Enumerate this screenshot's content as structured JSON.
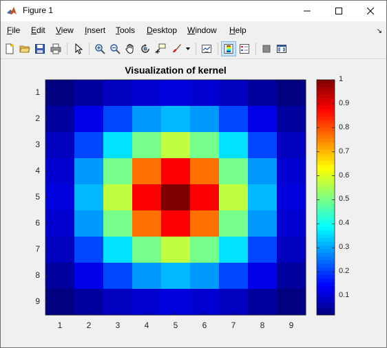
{
  "window": {
    "title": "Figure 1",
    "icon": "matlab-icon",
    "controls": [
      "minimize-icon",
      "maximize-icon",
      "close-icon"
    ]
  },
  "menu": [
    "File",
    "Edit",
    "View",
    "Insert",
    "Tools",
    "Desktop",
    "Window",
    "Help"
  ],
  "toolbar": {
    "buttons": [
      "new-figure-icon",
      "open-file-icon",
      "save-icon",
      "print-icon",
      "edit-plot-icon",
      "zoom-in-icon",
      "zoom-out-icon",
      "pan-icon",
      "rotate-3d-icon",
      "data-cursor-icon",
      "brush-icon",
      "link-plot-icon",
      "insert-colorbar-icon",
      "insert-legend-icon",
      "hide-plot-tools-icon",
      "show-plot-tools-icon"
    ],
    "active": [
      "insert-colorbar-icon"
    ]
  },
  "chart_data": {
    "type": "heatmap",
    "title": "Visualization of kernel",
    "x": [
      1,
      2,
      3,
      4,
      5,
      6,
      7,
      8,
      9
    ],
    "y": [
      1,
      2,
      3,
      4,
      5,
      6,
      7,
      8,
      9
    ],
    "xticklabels": [
      "1",
      "2",
      "3",
      "4",
      "5",
      "6",
      "7",
      "8",
      "9"
    ],
    "yticklabels": [
      "1",
      "2",
      "3",
      "4",
      "5",
      "6",
      "7",
      "8",
      "9"
    ],
    "values": [
      [
        0.02,
        0.05,
        0.08,
        0.1,
        0.11,
        0.1,
        0.08,
        0.05,
        0.02
      ],
      [
        0.05,
        0.12,
        0.21,
        0.29,
        0.32,
        0.29,
        0.21,
        0.12,
        0.05
      ],
      [
        0.08,
        0.21,
        0.36,
        0.5,
        0.57,
        0.5,
        0.36,
        0.21,
        0.08
      ],
      [
        0.1,
        0.29,
        0.5,
        0.77,
        0.88,
        0.77,
        0.5,
        0.29,
        0.1
      ],
      [
        0.11,
        0.32,
        0.57,
        0.88,
        1.0,
        0.88,
        0.57,
        0.32,
        0.11
      ],
      [
        0.1,
        0.29,
        0.5,
        0.77,
        0.88,
        0.77,
        0.5,
        0.29,
        0.1
      ],
      [
        0.08,
        0.21,
        0.36,
        0.5,
        0.57,
        0.5,
        0.36,
        0.21,
        0.08
      ],
      [
        0.05,
        0.12,
        0.21,
        0.29,
        0.32,
        0.29,
        0.21,
        0.12,
        0.05
      ],
      [
        0.02,
        0.05,
        0.08,
        0.1,
        0.11,
        0.1,
        0.08,
        0.05,
        0.02
      ]
    ],
    "colormap": "jet",
    "colorbar": {
      "location": "right",
      "ticks": [
        0.1,
        0.2,
        0.3,
        0.4,
        0.5,
        0.6,
        0.7,
        0.8,
        0.9,
        1
      ],
      "ticklabels": [
        "0.1",
        "0.2",
        "0.3",
        "0.4",
        "0.5",
        "0.6",
        "0.7",
        "0.8",
        "0.9",
        "1"
      ],
      "range": [
        0.02,
        1
      ]
    }
  }
}
